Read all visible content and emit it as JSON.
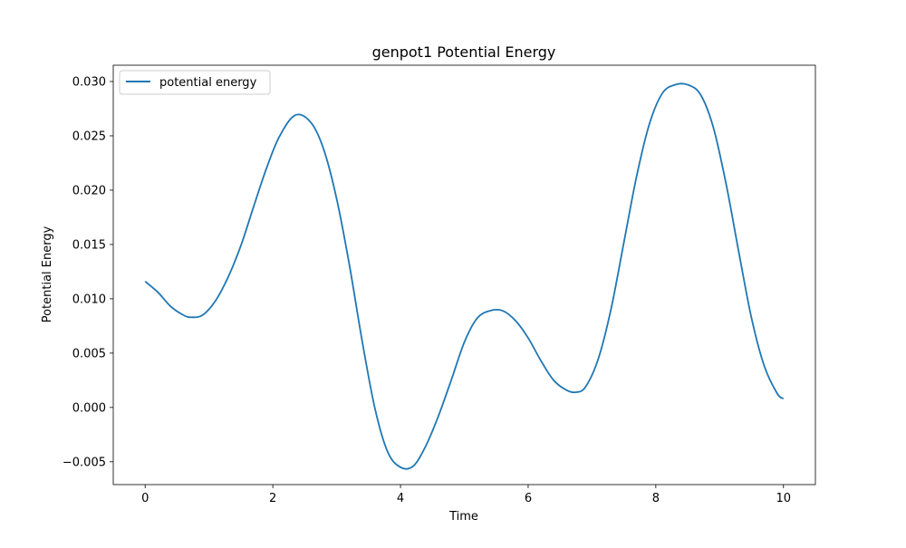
{
  "chart_data": {
    "type": "line",
    "title": "genpot1 Potential Energy",
    "xlabel": "Time",
    "ylabel": "Potential Energy",
    "xlim": [
      -0.5,
      10.5
    ],
    "ylim": [
      -0.0071,
      0.0315
    ],
    "xticks": [
      0,
      2,
      4,
      6,
      8,
      10
    ],
    "xtick_labels": [
      "0",
      "2",
      "4",
      "6",
      "8",
      "10"
    ],
    "yticks": [
      -0.005,
      0.0,
      0.005,
      0.01,
      0.015,
      0.02,
      0.025,
      0.03
    ],
    "ytick_labels": [
      "−0.005",
      "0.000",
      "0.005",
      "0.010",
      "0.015",
      "0.020",
      "0.025",
      "0.030"
    ],
    "grid": false,
    "legend_position": "upper-left",
    "color": "#1f77b4",
    "series": [
      {
        "name": "potential energy",
        "x": [
          0.0,
          0.2,
          0.4,
          0.6,
          0.72,
          0.9,
          1.1,
          1.3,
          1.5,
          1.7,
          1.9,
          2.1,
          2.35,
          2.6,
          2.8,
          3.0,
          3.2,
          3.4,
          3.6,
          3.8,
          4.0,
          4.2,
          4.4,
          4.6,
          4.8,
          5.0,
          5.2,
          5.4,
          5.6,
          5.8,
          6.0,
          6.2,
          6.4,
          6.6,
          6.75,
          6.9,
          7.1,
          7.3,
          7.5,
          7.7,
          7.9,
          8.1,
          8.3,
          8.5,
          8.7,
          8.9,
          9.1,
          9.3,
          9.5,
          9.7,
          9.9,
          10.0
        ],
        "y": [
          0.0116,
          0.0106,
          0.0093,
          0.0085,
          0.0083,
          0.0085,
          0.0098,
          0.012,
          0.0149,
          0.0185,
          0.022,
          0.0249,
          0.0269,
          0.0262,
          0.0237,
          0.0192,
          0.0131,
          0.0061,
          -0.0001,
          -0.0041,
          -0.0055,
          -0.0054,
          -0.0035,
          -0.0007,
          0.0026,
          0.006,
          0.0082,
          0.0089,
          0.0089,
          0.008,
          0.0064,
          0.0043,
          0.0025,
          0.0016,
          0.0014,
          0.0019,
          0.0045,
          0.0091,
          0.0152,
          0.0213,
          0.0261,
          0.0289,
          0.0297,
          0.0297,
          0.0288,
          0.0258,
          0.0206,
          0.0143,
          0.0082,
          0.0038,
          0.0013,
          0.0008
        ]
      }
    ]
  }
}
